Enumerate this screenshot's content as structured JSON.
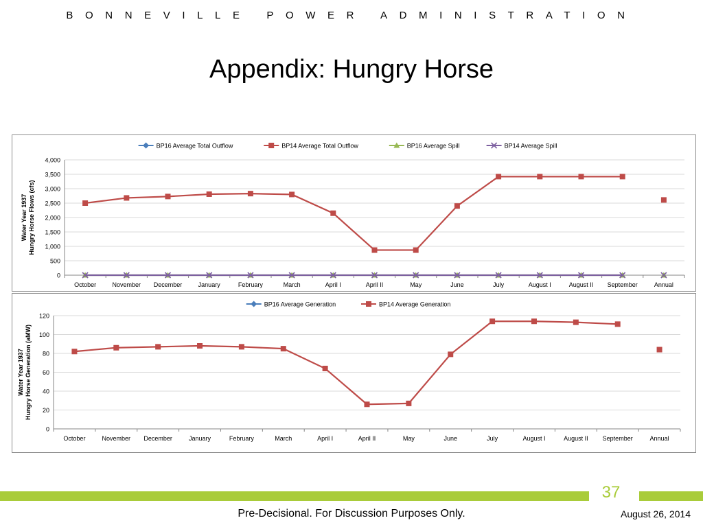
{
  "header": {
    "org": "BONNEVILLE POWER ADMINISTRATION"
  },
  "slide": {
    "title": "Appendix:  Hungry Horse",
    "page_number": "37",
    "footer_note": "Pre-Decisional.  For Discussion Purposes Only.",
    "date": "August 26, 2014"
  },
  "colors": {
    "accent": "#a9cc3a",
    "bp16_flow": "#4a7ebb",
    "bp14_flow": "#be4b48",
    "bp16_spill": "#98b954",
    "bp14_spill": "#7d60a0"
  },
  "chart_data": [
    {
      "type": "line",
      "ylabel": "Water Year 1937\nHungry Horse Flows (cfs)",
      "ylim": [
        0,
        4000
      ],
      "yticks": [
        0,
        500,
        1000,
        1500,
        2000,
        2500,
        3000,
        3500,
        4000
      ],
      "ytick_labels": [
        "0",
        "500",
        "1,000",
        "1,500",
        "2,000",
        "2,500",
        "3,000",
        "3,500",
        "4,000"
      ],
      "categories": [
        "October",
        "November",
        "December",
        "January",
        "February",
        "March",
        "April I",
        "April II",
        "May",
        "June",
        "July",
        "August I",
        "August II",
        "September",
        "Annual"
      ],
      "legend_position": "top",
      "grid": true,
      "series": [
        {
          "name": "BP16 Average Total Outflow",
          "color": "#4a7ebb",
          "marker": "diamond",
          "values": [
            null,
            null,
            null,
            null,
            null,
            null,
            null,
            null,
            null,
            null,
            null,
            null,
            null,
            null,
            null
          ]
        },
        {
          "name": "BP14 Average Total Outflow",
          "color": "#be4b48",
          "marker": "square",
          "values": [
            2500,
            2680,
            2730,
            2810,
            2830,
            2800,
            2150,
            870,
            870,
            2400,
            3420,
            3420,
            3420,
            3420,
            2610
          ]
        },
        {
          "name": "BP16 Average Spill",
          "color": "#98b954",
          "marker": "triangle",
          "values": [
            0,
            0,
            0,
            0,
            0,
            0,
            0,
            0,
            0,
            0,
            0,
            0,
            0,
            0,
            0
          ]
        },
        {
          "name": "BP14 Average Spill",
          "color": "#7d60a0",
          "marker": "x",
          "values": [
            0,
            0,
            0,
            0,
            0,
            0,
            0,
            0,
            0,
            0,
            0,
            0,
            0,
            0,
            0
          ]
        }
      ]
    },
    {
      "type": "line",
      "ylabel": "Water Year 1937\nHungry Horse Generation (aMW)",
      "ylim": [
        0,
        120
      ],
      "yticks": [
        0,
        20,
        40,
        60,
        80,
        100,
        120
      ],
      "ytick_labels": [
        "0",
        "20",
        "40",
        "60",
        "80",
        "100",
        "120"
      ],
      "categories": [
        "October",
        "November",
        "December",
        "January",
        "February",
        "March",
        "April I",
        "April II",
        "May",
        "June",
        "July",
        "August I",
        "August II",
        "September",
        "Annual"
      ],
      "legend_position": "top",
      "grid": true,
      "series": [
        {
          "name": "BP16 Average Generation",
          "color": "#4a7ebb",
          "marker": "diamond",
          "values": [
            null,
            null,
            null,
            null,
            null,
            null,
            null,
            null,
            null,
            null,
            null,
            null,
            null,
            null,
            null
          ]
        },
        {
          "name": "BP14 Average Generation",
          "color": "#be4b48",
          "marker": "square",
          "values": [
            82,
            86,
            87,
            88,
            87,
            85,
            64,
            26,
            27,
            79,
            114,
            114,
            113,
            111,
            84
          ]
        }
      ]
    }
  ]
}
